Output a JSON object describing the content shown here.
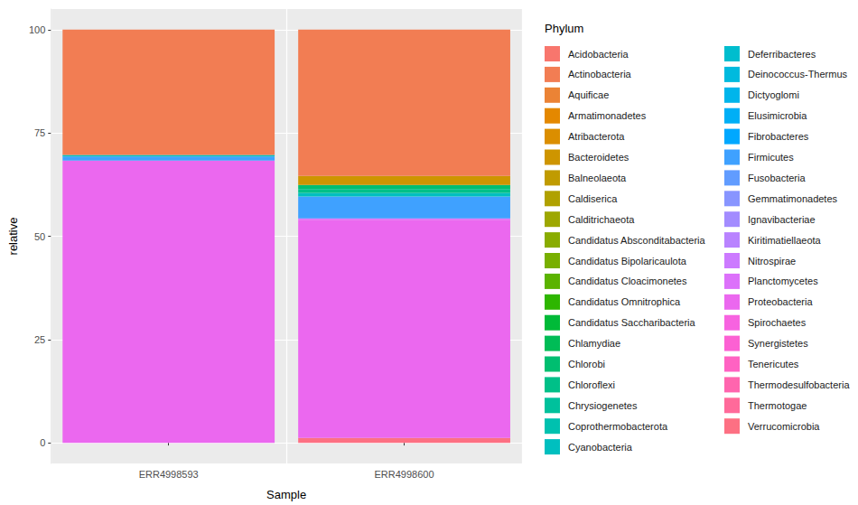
{
  "chart_data": {
    "type": "bar",
    "stacked": true,
    "grid": true,
    "legend": "right",
    "x_label": "Sample",
    "y_label": "relative",
    "legend_title": "Phylum",
    "categories": [
      "ERR4998593",
      "ERR4998600"
    ],
    "ylim": [
      -5,
      105
    ],
    "yticks": [
      0,
      25,
      50,
      75,
      100
    ],
    "series": [
      {
        "name": "Acidobacteria",
        "color": "#F8766D",
        "values": [
          0,
          0
        ]
      },
      {
        "name": "Actinobacteria",
        "color": "#F27D53",
        "values": [
          30.3,
          35.4
        ]
      },
      {
        "name": "Aquificae",
        "color": "#EB8335",
        "values": [
          0,
          0
        ]
      },
      {
        "name": "Armatimonadetes",
        "color": "#E48800",
        "values": [
          0,
          0
        ]
      },
      {
        "name": "Atribacterota",
        "color": "#DB8E00",
        "values": [
          0,
          0
        ]
      },
      {
        "name": "Bacteroidetes",
        "color": "#CE9500",
        "values": [
          0,
          2.2
        ]
      },
      {
        "name": "Balneolaeota",
        "color": "#C09B00",
        "values": [
          0,
          0
        ]
      },
      {
        "name": "Caldiserica",
        "color": "#B0A100",
        "values": [
          0,
          0
        ]
      },
      {
        "name": "Calditrichaeota",
        "color": "#9DA700",
        "values": [
          0,
          0
        ]
      },
      {
        "name": "Candidatus Absconditabacteria",
        "color": "#89AC00",
        "values": [
          0,
          0
        ]
      },
      {
        "name": "Candidatus Bipolaricaulota",
        "color": "#78AF00",
        "values": [
          0,
          0
        ]
      },
      {
        "name": "Candidatus Cloacimonetes",
        "color": "#5BB300",
        "values": [
          0,
          0
        ]
      },
      {
        "name": "Candidatus Omnitrophica",
        "color": "#2EB600",
        "values": [
          0,
          0
        ]
      },
      {
        "name": "Candidatus Saccharibacteria",
        "color": "#00BA38",
        "values": [
          0,
          0
        ]
      },
      {
        "name": "Chlamydiae",
        "color": "#00BC56",
        "values": [
          0,
          0
        ]
      },
      {
        "name": "Chlorobi",
        "color": "#00BE70",
        "values": [
          0,
          1.0
        ]
      },
      {
        "name": "Chloroflexi",
        "color": "#00C088",
        "values": [
          0,
          0.9
        ]
      },
      {
        "name": "Chrysiogenetes",
        "color": "#00C19C",
        "values": [
          0,
          0
        ]
      },
      {
        "name": "Coprothermobacterota",
        "color": "#00C1AF",
        "values": [
          0,
          0
        ]
      },
      {
        "name": "Cyanobacteria",
        "color": "#00BFBF",
        "values": [
          0.4,
          0.9
        ]
      },
      {
        "name": "Deferribacteres",
        "color": "#00BDCE",
        "values": [
          0,
          0
        ]
      },
      {
        "name": "Deinococcus-Thermus",
        "color": "#00BADE",
        "values": [
          0,
          0
        ]
      },
      {
        "name": "Dictyoglomi",
        "color": "#00B5EB",
        "values": [
          0,
          0
        ]
      },
      {
        "name": "Elusimicrobia",
        "color": "#00AFF6",
        "values": [
          0,
          0
        ]
      },
      {
        "name": "Fibrobacteres",
        "color": "#00A8FF",
        "values": [
          0,
          0
        ]
      },
      {
        "name": "Firmicutes",
        "color": "#3FA1FF",
        "values": [
          1.0,
          5.3
        ]
      },
      {
        "name": "Fusobacteria",
        "color": "#619CFF",
        "values": [
          0,
          0
        ]
      },
      {
        "name": "Gemmatimonadetes",
        "color": "#8895FF",
        "values": [
          0,
          0
        ]
      },
      {
        "name": "Ignavibacteriae",
        "color": "#A38CFF",
        "values": [
          0,
          0
        ]
      },
      {
        "name": "Kiritimatiellaeota",
        "color": "#B983FF",
        "values": [
          0,
          0
        ]
      },
      {
        "name": "Nitrospirae",
        "color": "#CC7AFF",
        "values": [
          0,
          0
        ]
      },
      {
        "name": "Planctomycetes",
        "color": "#DC71FA",
        "values": [
          0,
          0.3
        ]
      },
      {
        "name": "Proteobacteria",
        "color": "#EB68EF",
        "values": [
          68.3,
          52.8
        ]
      },
      {
        "name": "Spirochaetes",
        "color": "#F763E0",
        "values": [
          0,
          0
        ]
      },
      {
        "name": "Synergistetes",
        "color": "#FC61D3",
        "values": [
          0,
          0
        ]
      },
      {
        "name": "Tenericutes",
        "color": "#FF62C2",
        "values": [
          0,
          0
        ]
      },
      {
        "name": "Thermodesulfobacteria",
        "color": "#FF65AE",
        "values": [
          0,
          0
        ]
      },
      {
        "name": "Thermotogae",
        "color": "#FF6A9A",
        "values": [
          0,
          0
        ]
      },
      {
        "name": "Verrucomicrobia",
        "color": "#FD7083",
        "values": [
          0,
          1.2
        ]
      }
    ]
  }
}
